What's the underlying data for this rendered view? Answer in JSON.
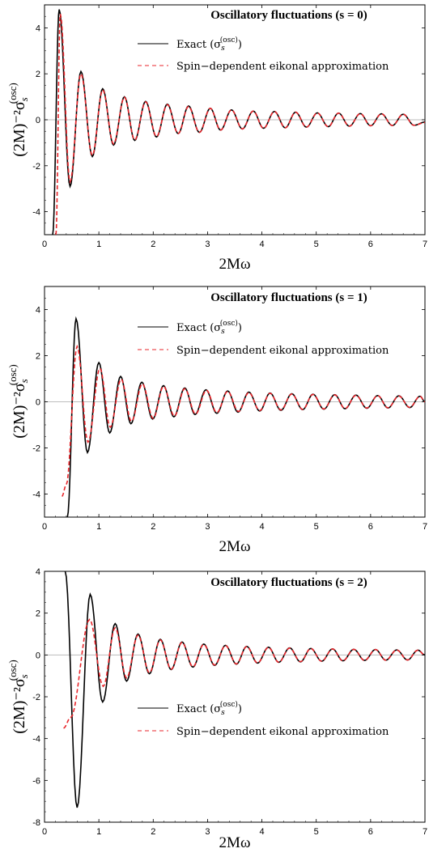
{
  "chart_data": [
    {
      "type": "line",
      "title": "Oscillatory fluctuations (s = 0)",
      "xlabel": "2Mω",
      "ylabel": "(2M)⁻²σ",
      "ylabel_sub": "s",
      "ylabel_sup": "(osc)",
      "xlim": [
        0,
        7
      ],
      "ylim": [
        -5,
        5
      ],
      "xticks": [
        0,
        1,
        2,
        3,
        4,
        5,
        6,
        7
      ],
      "yticks": [
        -4,
        -2,
        0,
        2,
        4
      ],
      "legend_placement": "top-right",
      "series": [
        {
          "name": "Exact (σ",
          "name_sub": "s",
          "name_sup": "(osc)",
          "name_end": ")",
          "color": "#000000",
          "dash": "solid",
          "x": [
            0.15,
            0.27,
            0.47,
            0.67,
            0.88,
            1.07,
            1.27,
            1.47,
            1.66,
            1.86,
            2.06,
            2.26,
            2.46,
            2.65,
            2.85,
            3.05,
            3.24,
            3.44,
            3.64,
            3.84,
            4.03,
            4.23,
            4.43,
            4.62,
            4.82,
            5.02,
            5.22,
            5.41,
            5.61,
            5.81,
            6.0,
            6.2,
            6.4,
            6.6,
            6.8,
            7.0
          ],
          "y": [
            -5,
            4.8,
            -2.9,
            2.1,
            -1.6,
            1.35,
            -1.1,
            1.0,
            -0.9,
            0.8,
            -0.75,
            0.68,
            -0.6,
            0.6,
            -0.55,
            0.5,
            -0.45,
            0.43,
            -0.4,
            0.38,
            -0.37,
            0.36,
            -0.35,
            0.33,
            -0.32,
            0.3,
            -0.3,
            0.29,
            -0.28,
            0.27,
            -0.26,
            0.26,
            -0.25,
            0.24,
            -0.24,
            -0.1
          ]
        },
        {
          "name": "Spin−dependent eikonal approximation",
          "color": "#e8262b",
          "dash": "dashed",
          "x": [
            0.21,
            0.29,
            0.47,
            0.67,
            0.88,
            1.07,
            1.27,
            1.47,
            1.66,
            1.86,
            2.06,
            2.26,
            2.46,
            2.65,
            2.85,
            3.05,
            3.24,
            3.44,
            3.64,
            3.84,
            4.03,
            4.23,
            4.43,
            4.62,
            4.82,
            5.02,
            5.22,
            5.41,
            5.61,
            5.81,
            6.0,
            6.2,
            6.4,
            6.6,
            6.8,
            7.0
          ],
          "y": [
            -5,
            4.6,
            -2.7,
            2.0,
            -1.55,
            1.3,
            -1.05,
            0.98,
            -0.88,
            0.78,
            -0.73,
            0.66,
            -0.6,
            0.58,
            -0.55,
            0.5,
            -0.45,
            0.43,
            -0.4,
            0.38,
            -0.37,
            0.36,
            -0.35,
            0.33,
            -0.32,
            0.3,
            -0.3,
            0.29,
            -0.28,
            0.27,
            -0.26,
            0.26,
            -0.25,
            0.24,
            -0.24,
            -0.12
          ]
        }
      ]
    },
    {
      "type": "line",
      "title": "Oscillatory fluctuations (s = 1)",
      "xlabel": "2Mω",
      "ylabel": "(2M)⁻²σ",
      "ylabel_sub": "s",
      "ylabel_sup": "(osc)",
      "xlim": [
        0,
        7
      ],
      "ylim": [
        -5,
        5
      ],
      "xticks": [
        0,
        1,
        2,
        3,
        4,
        5,
        6,
        7
      ],
      "yticks": [
        -4,
        -2,
        0,
        2,
        4
      ],
      "legend_placement": "top-right",
      "series": [
        {
          "name": "Exact (σ",
          "name_sub": "s",
          "name_sup": "(osc)",
          "name_end": ")",
          "color": "#000000",
          "dash": "solid",
          "x": [
            0.42,
            0.58,
            0.79,
            1.0,
            1.2,
            1.4,
            1.59,
            1.79,
            1.99,
            2.19,
            2.38,
            2.58,
            2.77,
            2.97,
            3.17,
            3.37,
            3.56,
            3.76,
            3.96,
            4.15,
            4.35,
            4.55,
            4.75,
            4.94,
            5.14,
            5.34,
            5.53,
            5.73,
            5.93,
            6.13,
            6.32,
            6.52,
            6.72,
            6.91,
            7.0
          ],
          "y": [
            -5,
            3.6,
            -2.2,
            1.7,
            -1.35,
            1.1,
            -0.95,
            0.85,
            -0.75,
            0.7,
            -0.65,
            0.6,
            -0.55,
            0.52,
            -0.5,
            0.47,
            -0.45,
            0.42,
            -0.4,
            0.38,
            -0.37,
            0.35,
            -0.34,
            0.33,
            -0.32,
            0.31,
            -0.3,
            0.29,
            -0.28,
            0.27,
            -0.27,
            0.26,
            -0.25,
            0.24,
            0.0
          ]
        },
        {
          "name": "Spin−dependent eikonal approximation",
          "color": "#e8262b",
          "dash": "dashed",
          "x": [
            0.32,
            0.4,
            0.6,
            0.8,
            1.02,
            1.21,
            1.41,
            1.6,
            1.8,
            2.0,
            2.19,
            2.39,
            2.58,
            2.78,
            2.98,
            3.17,
            3.37,
            3.57,
            3.76,
            3.96,
            4.15,
            4.35,
            4.55,
            4.75,
            4.94,
            5.14,
            5.34,
            5.53,
            5.73,
            5.93,
            6.13,
            6.32,
            6.52,
            6.72,
            6.91,
            7.0
          ],
          "y": [
            -4.1,
            -3.6,
            2.4,
            -1.75,
            1.45,
            -1.1,
            0.98,
            -0.85,
            0.78,
            -0.72,
            0.67,
            -0.62,
            0.57,
            -0.53,
            0.5,
            -0.47,
            0.45,
            -0.42,
            0.4,
            -0.38,
            0.37,
            -0.35,
            0.34,
            -0.33,
            0.32,
            -0.31,
            0.3,
            -0.29,
            0.28,
            -0.27,
            0.27,
            -0.26,
            0.25,
            -0.24,
            0.24,
            0.0
          ]
        }
      ]
    },
    {
      "type": "line",
      "title": "Oscillatory fluctuations (s = 2)",
      "xlabel": "2Mω",
      "ylabel": "(2M)⁻²σ",
      "ylabel_sub": "s",
      "ylabel_sup": "(osc)",
      "xlim": [
        0,
        7
      ],
      "ylim": [
        -8,
        4
      ],
      "xticks": [
        0,
        1,
        2,
        3,
        4,
        5,
        6,
        7
      ],
      "yticks": [
        -8,
        -6,
        -4,
        -2,
        0,
        2,
        4
      ],
      "legend_placement": "middle-right",
      "series": [
        {
          "name": "Exact (σ",
          "name_sub": "s",
          "name_sup": "(osc)",
          "name_end": ")",
          "color": "#000000",
          "dash": "solid",
          "x": [
            0.38,
            0.6,
            0.84,
            1.07,
            1.3,
            1.51,
            1.72,
            1.93,
            2.13,
            2.33,
            2.53,
            2.73,
            2.93,
            3.13,
            3.33,
            3.53,
            3.72,
            3.92,
            4.12,
            4.31,
            4.51,
            4.71,
            4.9,
            5.1,
            5.3,
            5.49,
            5.69,
            5.89,
            6.09,
            6.28,
            6.48,
            6.68,
            6.87,
            7.0
          ],
          "y": [
            4,
            -7.3,
            2.9,
            -2.25,
            1.5,
            -1.25,
            1.0,
            -0.9,
            0.75,
            -0.7,
            0.62,
            -0.58,
            0.52,
            -0.5,
            0.46,
            -0.44,
            0.41,
            -0.39,
            0.37,
            -0.35,
            0.34,
            -0.33,
            0.31,
            -0.3,
            0.29,
            -0.28,
            0.27,
            -0.26,
            0.26,
            -0.25,
            0.24,
            -0.24,
            0.23,
            0.0
          ]
        },
        {
          "name": "Spin−dependent eikonal approximation",
          "color": "#e8262b",
          "dash": "dashed",
          "x": [
            0.35,
            0.48,
            0.83,
            1.08,
            1.3,
            1.51,
            1.72,
            1.93,
            2.13,
            2.33,
            2.53,
            2.73,
            2.93,
            3.13,
            3.33,
            3.53,
            3.72,
            3.92,
            4.12,
            4.31,
            4.51,
            4.71,
            4.9,
            5.1,
            5.3,
            5.49,
            5.69,
            5.89,
            6.09,
            6.28,
            6.48,
            6.68,
            6.87,
            7.0
          ],
          "y": [
            -3.5,
            -3.0,
            1.7,
            -1.5,
            1.3,
            -1.1,
            0.95,
            -0.85,
            0.72,
            -0.68,
            0.6,
            -0.56,
            0.5,
            -0.48,
            0.45,
            -0.43,
            0.4,
            -0.38,
            0.36,
            -0.35,
            0.33,
            -0.32,
            0.31,
            -0.3,
            0.29,
            -0.28,
            0.27,
            -0.26,
            0.26,
            -0.25,
            0.24,
            -0.24,
            0.23,
            0.0
          ]
        }
      ]
    }
  ]
}
